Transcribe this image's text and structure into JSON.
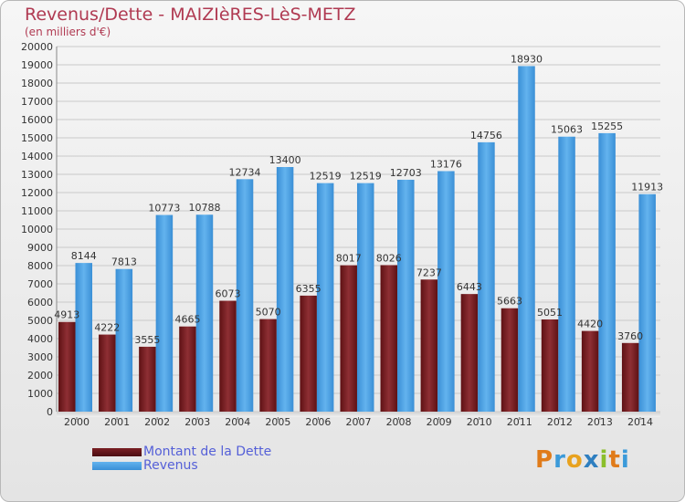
{
  "title": "Revenus/Dette - MAIZIèRES-LèS-METZ",
  "subtitle": "(en milliers d'€)",
  "legend": {
    "debt_label": "Montant de la Dette",
    "revenue_label": "Revenus"
  },
  "logo": {
    "text": "Proxiti",
    "letters": [
      "P",
      "r",
      "o",
      "x",
      "i",
      "t",
      "i"
    ]
  },
  "colors": {
    "debt": "#7a1f24",
    "revenue": "#4da3e6",
    "title": "#b03a52",
    "legend_text": "#5560d8"
  },
  "chart_data": {
    "type": "bar",
    "title": "Revenus/Dette - MAIZIèRES-LèS-METZ",
    "subtitle": "(en milliers d'€)",
    "categories": [
      "2000",
      "2001",
      "2002",
      "2003",
      "2004",
      "2005",
      "2006",
      "2007",
      "2008",
      "2009",
      "2010",
      "2011",
      "2012",
      "2013",
      "2014"
    ],
    "series": [
      {
        "name": "Montant de la Dette",
        "values": [
          4913,
          4222,
          3555,
          4665,
          6073,
          5070,
          6355,
          8017,
          8026,
          7237,
          6443,
          5663,
          5051,
          4420,
          3760
        ],
        "labels": [
          "4913",
          "4222",
          "3555",
          "4665",
          "6073",
          "5070",
          "6355",
          "8017",
          "8026",
          "7237",
          "6443",
          "5663",
          "5051",
          "4420",
          "3760"
        ]
      },
      {
        "name": "Revenus",
        "values": [
          8144,
          7813,
          10773,
          10788,
          12734,
          13400,
          12519,
          12519,
          12703,
          13176,
          14756,
          18930,
          15063,
          15255,
          11913
        ],
        "labels": [
          "8144",
          "7813",
          "10773",
          "10788",
          "12734",
          "13400",
          "12519",
          "12519",
          "12703",
          "13176",
          "14756",
          "18930",
          "15063",
          "15255",
          "11913"
        ]
      }
    ],
    "ylim": [
      0,
      20000
    ],
    "yticks": [
      "0",
      "1000",
      "2000",
      "3000",
      "4000",
      "5000",
      "6000",
      "7000",
      "8000",
      "9000",
      "10000",
      "11000",
      "12000",
      "13000",
      "14000",
      "15000",
      "16000",
      "17000",
      "18000",
      "19000",
      "20000"
    ],
    "grid": true,
    "legend_position": "bottom-left"
  }
}
